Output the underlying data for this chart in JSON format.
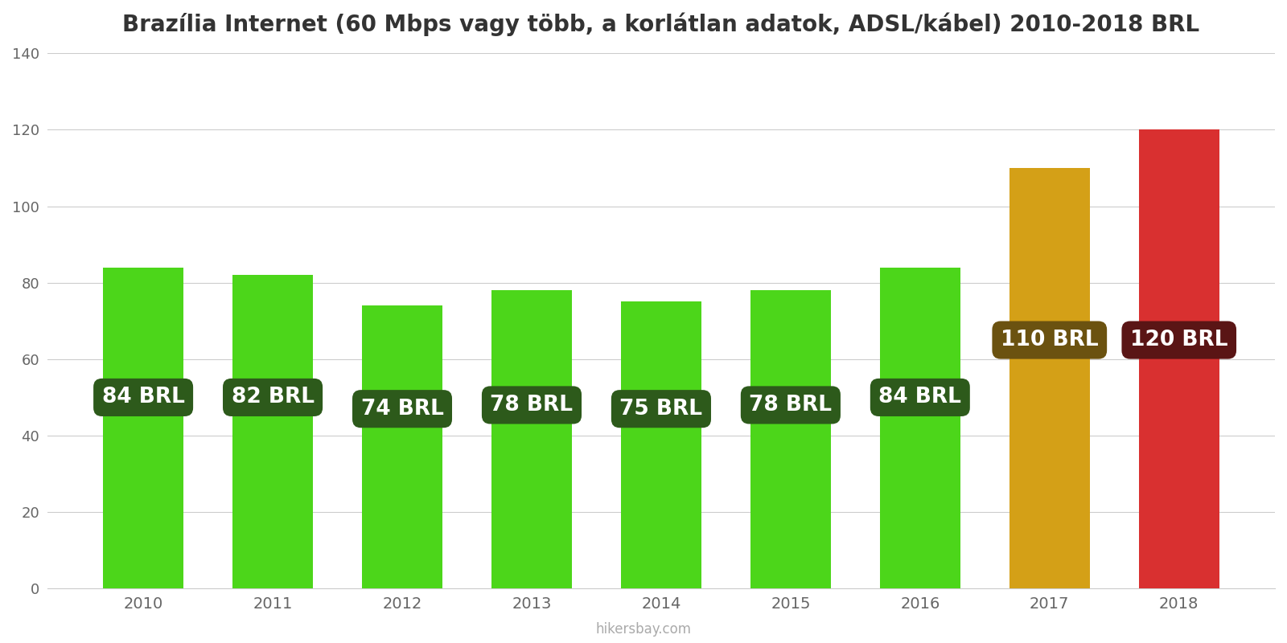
{
  "title": "Brazília Internet (60 Mbps vagy több, a korlátlan adatok, ADSL/kábel) 2010-2018 BRL",
  "years": [
    2010,
    2011,
    2012,
    2013,
    2014,
    2015,
    2016,
    2017,
    2018
  ],
  "values": [
    84,
    82,
    74,
    78,
    75,
    78,
    84,
    110,
    120
  ],
  "bar_colors": [
    "#4cd61a",
    "#4cd61a",
    "#4cd61a",
    "#4cd61a",
    "#4cd61a",
    "#4cd61a",
    "#4cd61a",
    "#d4a017",
    "#d93030"
  ],
  "label_bg_colors": [
    "#2d5a1b",
    "#2d5a1b",
    "#2d5a1b",
    "#2d5a1b",
    "#2d5a1b",
    "#2d5a1b",
    "#2d5a1b",
    "#6b5210",
    "#5a1515"
  ],
  "label_y_values": [
    50,
    50,
    47,
    48,
    47,
    48,
    50,
    65,
    65
  ],
  "ylim": [
    0,
    140
  ],
  "yticks": [
    0,
    20,
    40,
    60,
    80,
    100,
    120,
    140
  ],
  "watermark": "hikersbay.com",
  "background_color": "#ffffff",
  "title_fontsize": 20,
  "bar_label_fontsize": 19,
  "bar_width": 0.62
}
